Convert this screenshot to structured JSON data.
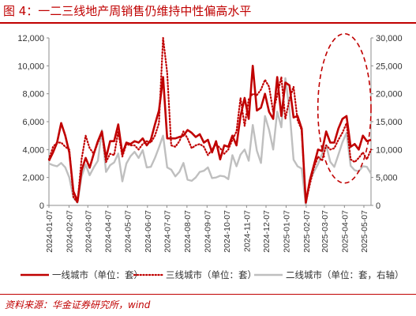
{
  "header": {
    "title": "图 4：一二三线地产周销售仍维持中性偏高水平"
  },
  "footer": {
    "source": "资料来源：华金证券研究所，wind"
  },
  "colors": {
    "tier1": "#c00000",
    "tier3": "#c00000",
    "tier2": "#bfbfbf",
    "annotation": "#c00000"
  },
  "chart_data": {
    "type": "line",
    "title": "",
    "xlabel": "",
    "ylabel": "",
    "y2label": "",
    "ylim": [
      0,
      12000
    ],
    "y2lim": [
      0,
      30000
    ],
    "yticks": [
      "0",
      "2,000",
      "4,000",
      "6,000",
      "8,000",
      "10,000",
      "12,000"
    ],
    "y2ticks": [
      "0",
      "5,000",
      "10,000",
      "15,000",
      "20,000",
      "25,000",
      "30,000"
    ],
    "x_tick_labels": [
      "2024-01-07",
      "2024-02-07",
      "2024-03-07",
      "2024-04-07",
      "2024-05-07",
      "2024-06-07",
      "2024-07-07",
      "2024-08-07",
      "2024-09-07",
      "2024-10-07",
      "2024-11-07",
      "2024-12-07",
      "2025-01-07",
      "2025-02-07",
      "2025-03-07",
      "2025-04-07",
      "2025-05-07"
    ],
    "grid": false,
    "legend_position": "bottom",
    "x_start": "2024-01-07",
    "x_end": "2025-05-18",
    "series": [
      {
        "name": "一线城市（单位：套）",
        "axis": "left",
        "style": "solid",
        "values": [
          3200,
          3800,
          4500,
          5900,
          5000,
          3800,
          1000,
          300,
          2500,
          3400,
          2700,
          3700,
          4600,
          5300,
          3400,
          4600,
          4600,
          5800,
          3700,
          4500,
          4400,
          4600,
          4500,
          4800,
          4300,
          4700,
          5800,
          6800,
          9200,
          4800,
          4800,
          4800,
          4900,
          5000,
          5400,
          5200,
          4900,
          5100,
          4500,
          4700,
          3800,
          4600,
          3300,
          4300,
          4200,
          5000,
          4300,
          6400,
          7700,
          6200,
          10000,
          6800,
          7000,
          8000,
          6700,
          6200,
          9200,
          6400,
          8800,
          8600,
          6300,
          6400,
          5500,
          200,
          1800,
          2900,
          4000,
          3900,
          5300,
          4500,
          4500,
          5500,
          6200,
          6400,
          4200,
          4400,
          4000,
          5000,
          4600,
          4700
        ]
      },
      {
        "name": "三线城市（单位：套）",
        "axis": "left",
        "style": "dotted",
        "values": [
          3300,
          4200,
          4500,
          4500,
          4200,
          4000,
          600,
          200,
          3300,
          5000,
          4100,
          3700,
          4500,
          5200,
          3100,
          3700,
          3600,
          5300,
          3500,
          4400,
          4300,
          4300,
          4000,
          4400,
          4600,
          4500,
          5000,
          5900,
          12000,
          9500,
          4300,
          4200,
          4600,
          5300,
          4800,
          4100,
          4300,
          4400,
          4200,
          3600,
          4000,
          4400,
          4100,
          3700,
          4000,
          4700,
          5300,
          7700,
          5700,
          7600,
          8000,
          7900,
          8300,
          9000,
          8500,
          6700,
          7900,
          9200,
          6200,
          7600,
          8500,
          6100,
          5400,
          200,
          1500,
          2700,
          3500,
          3200,
          4300,
          4000,
          4100,
          4700,
          5200,
          5900,
          3300,
          3100,
          3400,
          3800,
          3300,
          4000
        ]
      },
      {
        "name": "二线城市（单位：套，右轴）",
        "axis": "right",
        "style": "solid",
        "values": [
          7500,
          7200,
          7000,
          7600,
          6800,
          5000,
          1400,
          500,
          5200,
          7300,
          5400,
          6800,
          8000,
          13500,
          6000,
          7200,
          7700,
          9300,
          4300,
          7500,
          8800,
          9600,
          8500,
          9900,
          6800,
          6900,
          8500,
          10400,
          12500,
          6800,
          6400,
          5200,
          6000,
          7600,
          4600,
          4400,
          5000,
          6000,
          6200,
          6800,
          4900,
          5000,
          5300,
          5200,
          4700,
          9000,
          7000,
          9100,
          10000,
          8000,
          14400,
          9800,
          7600,
          16000,
          13500,
          10000,
          16800,
          14000,
          22800,
          17200,
          8200,
          7000,
          6600,
          200,
          4400,
          6000,
          7400,
          9200,
          10800,
          7800,
          6900,
          9100,
          11300,
          13000,
          7100,
          6300,
          6100,
          7000,
          6900,
          5700
        ]
      }
    ],
    "annotation": {
      "shape": "ellipse",
      "style": "dashed",
      "x_from": "2025-02-25",
      "x_to": "2025-05-18",
      "y_from": 1600,
      "y_to": 12300
    }
  }
}
